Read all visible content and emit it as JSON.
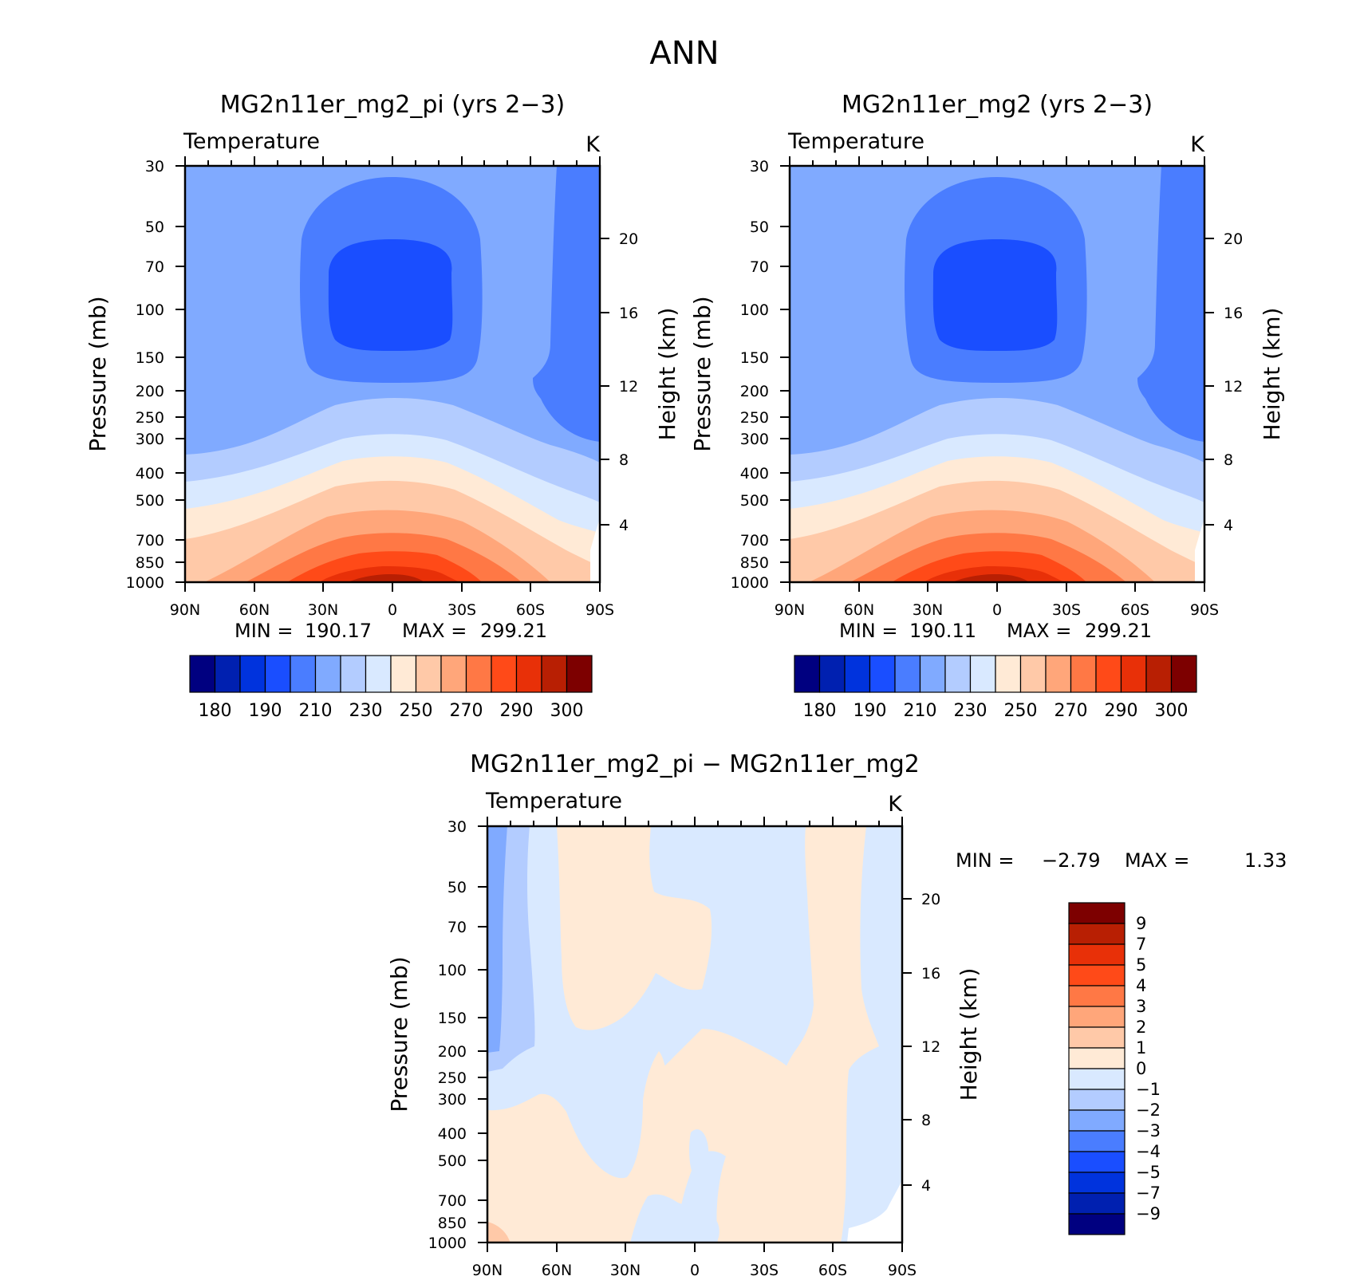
{
  "figure_title": "ANN",
  "chart_data": [
    {
      "type": "heatmap",
      "title": "MG2n11er_mg2_pi (yrs 2−3)",
      "subtitle_left": "Temperature",
      "units": "K",
      "ylabel": "Pressure (mb)",
      "ylabel_right": "Height (km)",
      "x_ticks": [
        "90N",
        "60N",
        "30N",
        "0",
        "30S",
        "60S",
        "90S"
      ],
      "y_ticks": [
        "30",
        "50",
        "70",
        "100",
        "150",
        "200",
        "250",
        "300",
        "400",
        "500",
        "700",
        "850",
        "1000"
      ],
      "y_ticks_right": [
        "20",
        "16",
        "12",
        "8",
        "4"
      ],
      "ylim": [
        1000,
        30
      ],
      "xlim": [
        90,
        -90
      ],
      "min_label": "MIN =",
      "min_value": "190.17",
      "max_label": "MAX =",
      "max_value": "299.21",
      "levels": [
        180,
        185,
        190,
        200,
        210,
        220,
        230,
        240,
        250,
        260,
        270,
        280,
        290,
        295,
        300
      ],
      "colorbar_labels": [
        "180",
        "190",
        "210",
        "230",
        "250",
        "270",
        "290",
        "300"
      ],
      "colors": [
        "#000080",
        "#0020b0",
        "#0033dd",
        "#1a4eff",
        "#4a7dff",
        "#80aaff",
        "#b3ccff",
        "#d9e9ff",
        "#ffead6",
        "#ffc9a8",
        "#ffa67a",
        "#ff7845",
        "#ff4a18",
        "#e83008",
        "#b81f03",
        "#7d0000"
      ]
    },
    {
      "type": "heatmap",
      "title": "MG2n11er_mg2 (yrs 2−3)",
      "subtitle_left": "Temperature",
      "units": "K",
      "ylabel": "Pressure (mb)",
      "ylabel_right": "Height (km)",
      "x_ticks": [
        "90N",
        "60N",
        "30N",
        "0",
        "30S",
        "60S",
        "90S"
      ],
      "y_ticks": [
        "30",
        "50",
        "70",
        "100",
        "150",
        "200",
        "250",
        "300",
        "400",
        "500",
        "700",
        "850",
        "1000"
      ],
      "y_ticks_right": [
        "20",
        "16",
        "12",
        "8",
        "4"
      ],
      "ylim": [
        1000,
        30
      ],
      "xlim": [
        90,
        -90
      ],
      "min_label": "MIN =",
      "min_value": "190.11",
      "max_label": "MAX =",
      "max_value": "299.21",
      "levels": [
        180,
        185,
        190,
        200,
        210,
        220,
        230,
        240,
        250,
        260,
        270,
        280,
        290,
        295,
        300
      ],
      "colorbar_labels": [
        "180",
        "190",
        "210",
        "230",
        "250",
        "270",
        "290",
        "300"
      ],
      "colors": [
        "#000080",
        "#0020b0",
        "#0033dd",
        "#1a4eff",
        "#4a7dff",
        "#80aaff",
        "#b3ccff",
        "#d9e9ff",
        "#ffead6",
        "#ffc9a8",
        "#ffa67a",
        "#ff7845",
        "#ff4a18",
        "#e83008",
        "#b81f03",
        "#7d0000"
      ]
    },
    {
      "type": "heatmap",
      "title": "MG2n11er_mg2_pi − MG2n11er_mg2",
      "subtitle_left": "Temperature",
      "units": "K",
      "ylabel": "Pressure (mb)",
      "ylabel_right": "Height (km)",
      "x_ticks": [
        "90N",
        "60N",
        "30N",
        "0",
        "30S",
        "60S",
        "90S"
      ],
      "y_ticks": [
        "30",
        "50",
        "70",
        "100",
        "150",
        "200",
        "250",
        "300",
        "400",
        "500",
        "700",
        "850",
        "1000"
      ],
      "y_ticks_right": [
        "20",
        "16",
        "12",
        "8",
        "4"
      ],
      "ylim": [
        1000,
        30
      ],
      "xlim": [
        90,
        -90
      ],
      "min_label": "MIN =",
      "min_value": "−2.79",
      "max_label": "MAX =",
      "max_value": "1.33",
      "levels": [
        -9,
        -7,
        -5,
        -4,
        -3,
        -2,
        -1,
        0,
        1,
        2,
        3,
        4,
        5,
        7,
        9
      ],
      "colorbar_labels": [
        "9",
        "7",
        "5",
        "4",
        "3",
        "2",
        "1",
        "0",
        "−1",
        "−2",
        "−3",
        "−4",
        "−5",
        "−7",
        "−9"
      ],
      "colors": [
        "#000080",
        "#0020b0",
        "#0033dd",
        "#1a4eff",
        "#4a7dff",
        "#80aaff",
        "#b3ccff",
        "#d9e9ff",
        "#ffead6",
        "#ffc9a8",
        "#ffa67a",
        "#ff7845",
        "#ff4a18",
        "#e83008",
        "#b81f03",
        "#7d0000"
      ]
    }
  ]
}
